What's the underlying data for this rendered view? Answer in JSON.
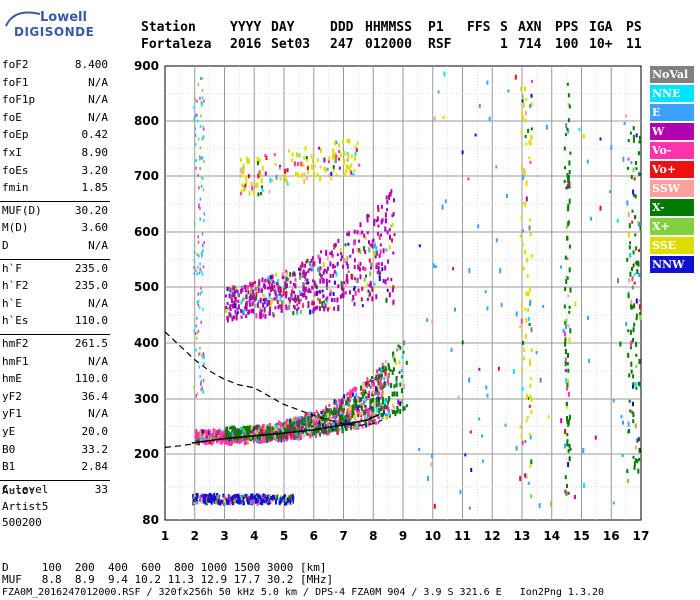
{
  "logo": {
    "line1": "Lowell",
    "line2": "DIGISONDE"
  },
  "header": {
    "labels": [
      "Station",
      "YYYY",
      "DAY",
      "DDD",
      "HHMMSS",
      "P1",
      "FFS",
      "S",
      "AXN",
      "PPS",
      "IGA",
      "PS"
    ],
    "values": [
      "Fortaleza",
      "2016",
      "Set03",
      "247",
      "012000",
      "RSF",
      "",
      "1",
      "714",
      "100",
      "10+",
      "11"
    ]
  },
  "params": [
    {
      "label": "foF2",
      "value": "8.400"
    },
    {
      "label": "foF1",
      "value": "N/A"
    },
    {
      "label": "foF1p",
      "value": "N/A"
    },
    {
      "label": "foE",
      "value": "N/A"
    },
    {
      "label": "foEp",
      "value": "0.42"
    },
    {
      "label": "fxI",
      "value": "8.90"
    },
    {
      "label": "foEs",
      "value": "3.20"
    },
    {
      "label": "fmin",
      "value": "1.85"
    },
    {
      "label": "MUF(D)",
      "value": "30.20"
    },
    {
      "label": "M(D)",
      "value": "3.60"
    },
    {
      "label": "D",
      "value": "N/A"
    },
    {
      "label": "h`F",
      "value": "235.0"
    },
    {
      "label": "h`F2",
      "value": "235.0"
    },
    {
      "label": "h`E",
      "value": "N/A"
    },
    {
      "label": "h`Es",
      "value": "110.0"
    },
    {
      "label": "hmF2",
      "value": "261.5"
    },
    {
      "label": "hmF1",
      "value": "N/A"
    },
    {
      "label": "hmE",
      "value": "110.0"
    },
    {
      "label": "yF2",
      "value": "36.4"
    },
    {
      "label": "yF1",
      "value": "N/A"
    },
    {
      "label": "yE",
      "value": "20.0"
    },
    {
      "label": "B0",
      "value": "33.2"
    },
    {
      "label": "B1",
      "value": "2.84"
    },
    {
      "label": "C-level",
      "value": "33"
    }
  ],
  "autoscale": {
    "line1": "Auto:",
    "line2": "Artist5",
    "line3": "500200"
  },
  "legend": [
    {
      "label": "NoVal",
      "color": "#808080"
    },
    {
      "label": "NNE",
      "color": "#00e5ff"
    },
    {
      "label": "E",
      "color": "#3ca0ff"
    },
    {
      "label": "W",
      "color": "#b000b0"
    },
    {
      "label": "Vo-",
      "color": "#ff33aa"
    },
    {
      "label": "Vo+",
      "color": "#ee1111"
    },
    {
      "label": "SSW",
      "color": "#ffa0a0"
    },
    {
      "label": "X-",
      "color": "#007a00"
    },
    {
      "label": "X+",
      "color": "#80d040"
    },
    {
      "label": "SSE",
      "color": "#dddd00"
    },
    {
      "label": "NNW",
      "color": "#1010d0"
    }
  ],
  "bottom": {
    "d_row": "D     100  200  400  600  800 1000 1500 3000 [km]",
    "muf_row": "MUF   8.8  8.9  9.4 10.2 11.3 12.9 17.7 30.2 [MHz]",
    "footer": "FZA0M_2016247012000.RSF / 320fx256h 50 kHz 5.0 km / DPS-4 FZA0M 904 / 3.9 S 321.6 E   Ion2Png 1.3.20"
  },
  "chart_data": {
    "type": "scatter",
    "xlim": [
      1,
      17
    ],
    "ylim": [
      80,
      900
    ],
    "x_ticks": [
      "1",
      "2",
      "3",
      "4",
      "5",
      "6",
      "7",
      "8",
      "9",
      "10",
      "11",
      "12",
      "13",
      "14",
      "15",
      "16",
      "17"
    ],
    "y_ticks": [
      "80",
      "200",
      "300",
      "400",
      "500",
      "600",
      "700",
      "800",
      "900"
    ],
    "y_tick_values": [
      80,
      200,
      300,
      400,
      500,
      600,
      700,
      800,
      900
    ],
    "grid": true,
    "legend_position": "right",
    "profile_curve": [
      [
        1.9,
        220
      ],
      [
        3,
        228
      ],
      [
        4,
        233
      ],
      [
        5,
        238
      ],
      [
        6,
        244
      ],
      [
        7,
        253
      ],
      [
        7.8,
        262
      ],
      [
        8.2,
        272
      ]
    ],
    "trace_curve": [
      [
        1,
        420
      ],
      [
        1.5,
        395
      ],
      [
        2,
        370
      ],
      [
        2.5,
        350
      ],
      [
        3,
        335
      ],
      [
        3.5,
        325
      ],
      [
        4,
        320
      ],
      [
        4.5,
        305
      ],
      [
        5,
        290
      ],
      [
        5.5,
        280
      ],
      [
        6,
        270
      ],
      [
        6.5,
        262
      ],
      [
        7,
        255
      ],
      [
        7.5,
        252
      ],
      [
        8,
        255
      ],
      [
        8.3,
        262
      ]
    ],
    "bottom_curve": [
      [
        1,
        212
      ],
      [
        1.5,
        215
      ],
      [
        1.9,
        218
      ]
    ],
    "clusters": [
      {
        "name": "F2 O-trace",
        "x": [
          2.0,
          8.5
        ],
        "y": [
          215,
          360
        ],
        "color": "#ff33aa",
        "density": 900
      },
      {
        "name": "F2 X-trace",
        "x": [
          3.0,
          9.1
        ],
        "y": [
          230,
          420
        ],
        "color": "#007a00",
        "density": 500
      },
      {
        "name": "second hop",
        "x": [
          3.0,
          8.7
        ],
        "y": [
          420,
          640
        ],
        "color": "#b000b0",
        "density": 600
      },
      {
        "name": "third hop",
        "x": [
          3.5,
          7.5
        ],
        "y": [
          650,
          790
        ],
        "color": "#dddd00",
        "density": 150
      },
      {
        "name": "Es layer",
        "x": [
          1.9,
          5.3
        ],
        "y": [
          110,
          125
        ],
        "color": "#1010d0",
        "density": 300
      },
      {
        "name": "vertical streaks 13",
        "x": [
          12.9,
          13.3
        ],
        "y": [
          120,
          880
        ],
        "color": "#dddd00",
        "density": 90
      },
      {
        "name": "vertical streaks 14.5",
        "x": [
          14.4,
          14.6
        ],
        "y": [
          120,
          900
        ],
        "color": "#007a00",
        "density": 90
      },
      {
        "name": "vertical streaks 16.8",
        "x": [
          16.5,
          16.95
        ],
        "y": [
          150,
          800
        ],
        "color": "#007a00",
        "density": 120
      },
      {
        "name": "scatter noise",
        "x": [
          9.5,
          16.5
        ],
        "y": [
          100,
          890
        ],
        "color": "#3ca0ff",
        "density": 100
      }
    ]
  }
}
